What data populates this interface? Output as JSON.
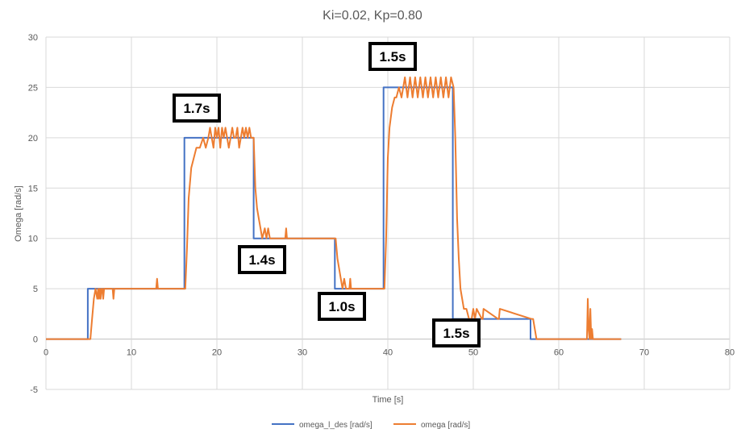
{
  "chart_data": {
    "type": "line",
    "title": "Ki=0.02, Kp=0.80",
    "xlabel": "Time [s]",
    "ylabel": "Omega [rad/s]",
    "xlim": [
      0,
      80
    ],
    "ylim": [
      -5,
      30
    ],
    "xticks": [
      0,
      10,
      20,
      30,
      40,
      50,
      60,
      70,
      80
    ],
    "yticks": [
      -5,
      0,
      5,
      10,
      15,
      20,
      25,
      30
    ],
    "grid": true,
    "legend_position": "bottom",
    "series": [
      {
        "name": "omega_l_des [rad/s]",
        "color": "#4472C4",
        "x": [
          0,
          4.9,
          4.9,
          16.2,
          16.2,
          24.3,
          24.3,
          33.8,
          33.8,
          39.5,
          39.5,
          47.6,
          47.6,
          56.7,
          56.7,
          67.3
        ],
        "y": [
          0,
          0,
          5,
          5,
          20,
          20,
          10,
          10,
          5,
          5,
          25,
          25,
          2,
          2,
          0,
          0
        ]
      },
      {
        "name": "omega [rad/s]",
        "color": "#ED7D31",
        "x": [
          0,
          5.2,
          5.4,
          5.6,
          5.8,
          6.0,
          6.1,
          6.2,
          6.3,
          6.4,
          6.5,
          6.6,
          6.7,
          6.8,
          6.9,
          7.0,
          7.2,
          7.8,
          7.9,
          8.0,
          8.2,
          12.9,
          13.0,
          13.1,
          16.3,
          16.5,
          16.7,
          17.0,
          17.3,
          17.6,
          18.0,
          18.4,
          18.7,
          19.0,
          19.2,
          19.4,
          19.6,
          19.8,
          20.0,
          20.2,
          20.4,
          20.6,
          20.8,
          21.0,
          21.2,
          21.4,
          21.6,
          21.8,
          22.0,
          22.2,
          22.4,
          22.6,
          22.8,
          23.0,
          23.2,
          23.4,
          23.6,
          23.8,
          24.0,
          24.3,
          24.5,
          24.7,
          24.9,
          25.1,
          25.3,
          25.6,
          25.8,
          26.0,
          26.2,
          26.5,
          28.0,
          28.1,
          28.2,
          33.9,
          34.1,
          34.3,
          34.5,
          34.7,
          34.9,
          35.1,
          35.5,
          35.6,
          35.7,
          39.6,
          39.8,
          40.0,
          40.2,
          40.5,
          40.8,
          41.0,
          41.3,
          41.6,
          42.0,
          42.3,
          42.6,
          42.9,
          43.2,
          43.5,
          43.8,
          44.1,
          44.4,
          44.7,
          45.0,
          45.3,
          45.6,
          45.9,
          46.2,
          46.5,
          46.8,
          47.1,
          47.4,
          47.7,
          47.9,
          48.1,
          48.3,
          48.5,
          48.7,
          48.9,
          49.2,
          49.5,
          49.8,
          50.0,
          50.2,
          50.4,
          51.0,
          51.1,
          51.2,
          52.9,
          53.0,
          53.1,
          56.8,
          57.0,
          57.2,
          57.4,
          63.2,
          63.3,
          63.4,
          63.5,
          63.6,
          63.7,
          63.8,
          63.9,
          64.0,
          64.1,
          64.2,
          67.3
        ],
        "y": [
          0,
          0,
          2,
          4,
          5,
          4,
          5,
          4,
          5,
          4,
          5,
          5,
          4,
          5,
          5,
          5,
          5,
          5,
          4,
          5,
          5,
          5,
          6,
          5,
          5,
          9,
          14,
          17,
          18,
          19,
          19,
          20,
          19,
          20,
          21,
          20,
          19,
          21,
          20,
          21,
          19,
          21,
          20,
          21,
          20,
          19,
          20,
          21,
          20,
          20,
          21,
          19,
          20,
          21,
          20,
          21,
          20,
          21,
          20,
          20,
          15,
          13,
          12,
          11,
          10,
          11,
          10,
          11,
          10,
          10,
          10,
          11,
          10,
          10,
          8,
          7,
          6,
          5,
          6,
          5,
          5,
          6,
          5,
          5,
          10,
          18,
          21,
          23,
          24,
          24,
          25,
          24,
          26,
          24,
          26,
          24,
          26,
          24,
          26,
          24,
          26,
          24,
          26,
          24,
          26,
          24,
          26,
          24,
          26,
          24,
          26,
          25,
          20,
          12,
          8,
          5,
          4,
          3,
          3,
          2,
          2,
          3,
          2,
          3,
          2,
          2,
          3,
          2,
          2,
          3,
          2,
          2,
          1,
          0,
          0,
          0,
          4,
          1,
          0,
          3,
          0,
          1,
          0,
          0,
          0,
          0
        ]
      }
    ],
    "annotations": [
      {
        "text": "1.7s"
      },
      {
        "text": "1.4s"
      },
      {
        "text": "1.0s"
      },
      {
        "text": "1.5s"
      },
      {
        "text": "1.5s"
      }
    ]
  }
}
